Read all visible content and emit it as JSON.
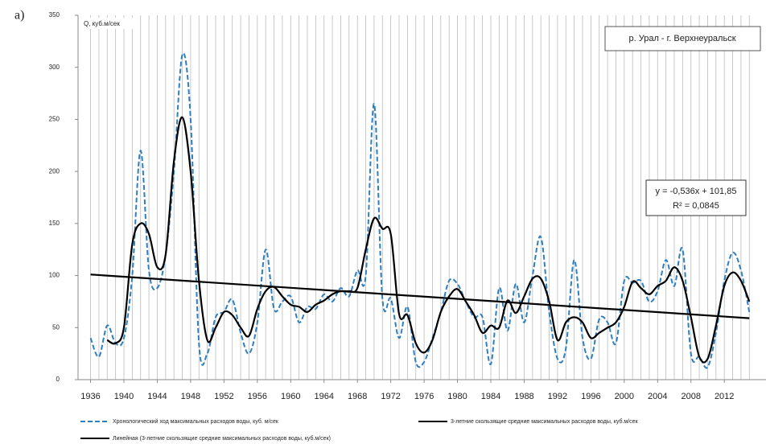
{
  "chart_data": {
    "type": "line",
    "panel_label": "а)",
    "y_label": "Q, куб.м/сек",
    "title": "р. Урал - г. Верхнеуральск",
    "equation": "y = -0,536x + 101,85",
    "r_squared": "R² = 0,0845",
    "x": [
      1936,
      1937,
      1938,
      1939,
      1940,
      1941,
      1942,
      1943,
      1944,
      1945,
      1946,
      1947,
      1948,
      1949,
      1950,
      1951,
      1952,
      1953,
      1954,
      1955,
      1956,
      1957,
      1958,
      1959,
      1960,
      1961,
      1962,
      1963,
      1964,
      1965,
      1966,
      1967,
      1968,
      1969,
      1970,
      1971,
      1972,
      1973,
      1974,
      1975,
      1976,
      1977,
      1978,
      1979,
      1980,
      1981,
      1982,
      1983,
      1984,
      1985,
      1986,
      1987,
      1988,
      1989,
      1990,
      1991,
      1992,
      1993,
      1994,
      1995,
      1996,
      1997,
      1998,
      1999,
      2000,
      2001,
      2002,
      2003,
      2004,
      2005,
      2006,
      2007,
      2008,
      2009,
      2010,
      2011,
      2012,
      2013,
      2014,
      2015
    ],
    "series": [
      {
        "name": "Хронологический ход максимальных расходов воды, куб. м/сек",
        "color": "#2e7fc0",
        "dashed": true,
        "values": [
          40,
          22,
          52,
          35,
          40,
          100,
          220,
          105,
          88,
          120,
          200,
          312,
          250,
          35,
          25,
          60,
          65,
          77,
          45,
          25,
          55,
          125,
          68,
          75,
          80,
          55,
          70,
          68,
          82,
          75,
          88,
          80,
          105,
          100,
          265,
          78,
          78,
          40,
          70,
          17,
          17,
          40,
          65,
          95,
          92,
          75,
          60,
          60,
          15,
          88,
          47,
          92,
          55,
          100,
          137,
          65,
          20,
          30,
          115,
          40,
          20,
          58,
          55,
          35,
          95,
          93,
          95,
          75,
          85,
          115,
          90,
          125,
          25,
          22,
          12,
          45,
          95,
          122,
          105,
          65
        ]
      },
      {
        "name": "3-летние скользящие средние максимальных расходов воды, куб.м/сек",
        "color": "#000000",
        "dashed": false,
        "values": [
          null,
          null,
          38,
          35,
          50,
          130,
          150,
          140,
          108,
          120,
          210,
          252,
          200,
          95,
          38,
          50,
          65,
          62,
          50,
          42,
          68,
          85,
          89,
          80,
          72,
          70,
          65,
          72,
          76,
          82,
          85,
          85,
          88,
          125,
          155,
          145,
          140,
          63,
          62,
          35,
          26,
          38,
          65,
          80,
          87,
          75,
          62,
          45,
          52,
          50,
          76,
          64,
          80,
          97,
          97,
          75,
          38,
          55,
          60,
          55,
          40,
          45,
          50,
          55,
          70,
          94,
          88,
          82,
          90,
          95,
          108,
          95,
          60,
          22,
          20,
          52,
          90,
          103,
          95,
          75
        ]
      },
      {
        "name": "Линейная (3-летние скользящие средние максимальных расходов воды, куб.м/сек)",
        "color": "#000000",
        "dashed": false,
        "straight": true,
        "x": [
          1936,
          2015
        ],
        "values": [
          101,
          59
        ]
      }
    ],
    "xlim": [
      1934.5,
      2017
    ],
    "xticks": [
      1936,
      1940,
      1944,
      1948,
      1952,
      1956,
      1960,
      1964,
      1968,
      1972,
      1976,
      1980,
      1984,
      1988,
      1992,
      1996,
      2000,
      2004,
      2008,
      2012
    ],
    "ylim": [
      0,
      350
    ],
    "yticks": [
      0,
      50,
      100,
      150,
      200,
      250,
      300,
      350
    ],
    "grid": true,
    "smooth": true
  }
}
